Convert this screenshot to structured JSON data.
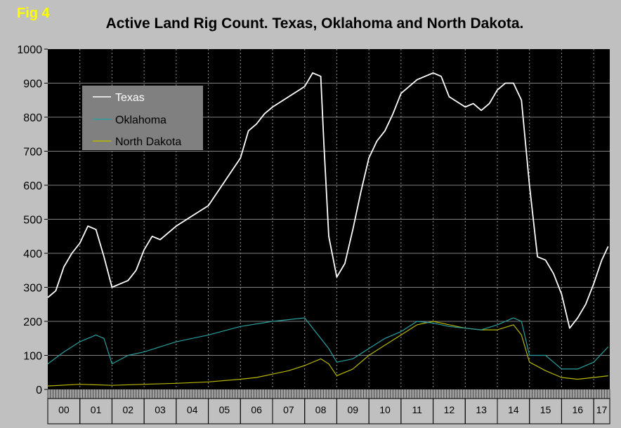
{
  "figure": {
    "label": "Fig 4",
    "title": "Active Land Rig Count. Texas, Oklahoma and North Dakota."
  },
  "colors": {
    "background": "#c0c0c0",
    "plot_area": "#000000",
    "gridline": "#808080",
    "texas": "#ffffff",
    "oklahoma": "#2aa0a0",
    "north_dakota": "#b8b800",
    "legend_box": "#808080"
  },
  "chart_data": {
    "type": "line",
    "title": "Active Land Rig Count. Texas, Oklahoma and North Dakota.",
    "xlabel": "",
    "ylabel": "",
    "ylim": [
      0,
      1000
    ],
    "yticks": [
      0,
      100,
      200,
      300,
      400,
      500,
      600,
      700,
      800,
      900,
      1000
    ],
    "xlim": [
      2000.0,
      2017.5
    ],
    "year_labels": [
      "00",
      "01",
      "02",
      "03",
      "04",
      "05",
      "06",
      "07",
      "08",
      "09",
      "10",
      "11",
      "12",
      "13",
      "14",
      "15",
      "16",
      "17"
    ],
    "grid": true,
    "legend_position": "top-left",
    "series": [
      {
        "name": "Texas",
        "color": "#ffffff",
        "x": [
          2000.0,
          2000.25,
          2000.5,
          2000.75,
          2001.0,
          2001.25,
          2001.5,
          2001.75,
          2002.0,
          2002.25,
          2002.5,
          2002.75,
          2003.0,
          2003.25,
          2003.5,
          2003.75,
          2004.0,
          2004.5,
          2005.0,
          2005.5,
          2006.0,
          2006.25,
          2006.5,
          2006.75,
          2007.0,
          2007.5,
          2008.0,
          2008.25,
          2008.5,
          2008.6,
          2008.75,
          2009.0,
          2009.25,
          2009.5,
          2009.75,
          2010.0,
          2010.25,
          2010.5,
          2010.75,
          2011.0,
          2011.5,
          2012.0,
          2012.25,
          2012.5,
          2013.0,
          2013.25,
          2013.5,
          2013.75,
          2014.0,
          2014.25,
          2014.5,
          2014.75,
          2015.0,
          2015.25,
          2015.5,
          2015.75,
          2016.0,
          2016.25,
          2016.5,
          2016.75,
          2017.0,
          2017.25,
          2017.45
        ],
        "values": [
          270,
          290,
          360,
          400,
          430,
          480,
          470,
          390,
          300,
          310,
          320,
          350,
          410,
          450,
          440,
          460,
          480,
          510,
          540,
          610,
          680,
          760,
          780,
          810,
          830,
          860,
          890,
          930,
          920,
          720,
          450,
          330,
          370,
          470,
          580,
          680,
          730,
          760,
          810,
          870,
          910,
          930,
          920,
          860,
          830,
          840,
          820,
          840,
          880,
          900,
          900,
          850,
          600,
          390,
          380,
          340,
          280,
          180,
          210,
          250,
          310,
          380,
          420
        ]
      },
      {
        "name": "Oklahoma",
        "color": "#2aa0a0",
        "x": [
          2000.0,
          2000.5,
          2001.0,
          2001.5,
          2001.75,
          2002.0,
          2002.5,
          2003.0,
          2004.0,
          2005.0,
          2006.0,
          2007.0,
          2008.0,
          2008.75,
          2009.0,
          2009.5,
          2010.0,
          2010.5,
          2011.0,
          2011.5,
          2012.0,
          2012.5,
          2013.0,
          2013.5,
          2014.0,
          2014.5,
          2014.75,
          2015.0,
          2015.5,
          2016.0,
          2016.5,
          2017.0,
          2017.45
        ],
        "values": [
          75,
          110,
          140,
          160,
          150,
          75,
          100,
          110,
          140,
          160,
          185,
          200,
          210,
          120,
          80,
          90,
          120,
          150,
          170,
          200,
          195,
          185,
          180,
          175,
          190,
          210,
          200,
          100,
          100,
          60,
          60,
          80,
          125
        ]
      },
      {
        "name": "North Dakota",
        "color": "#b8b800",
        "x": [
          2000.0,
          2001.0,
          2002.0,
          2003.0,
          2004.0,
          2005.0,
          2006.0,
          2006.5,
          2007.0,
          2007.5,
          2008.0,
          2008.5,
          2008.75,
          2009.0,
          2009.5,
          2010.0,
          2010.5,
          2011.0,
          2011.5,
          2012.0,
          2012.5,
          2013.0,
          2013.5,
          2014.0,
          2014.5,
          2014.75,
          2015.0,
          2015.5,
          2016.0,
          2016.5,
          2017.0,
          2017.45
        ],
        "values": [
          10,
          15,
          12,
          15,
          18,
          22,
          30,
          35,
          45,
          55,
          70,
          90,
          75,
          40,
          60,
          100,
          130,
          160,
          190,
          200,
          190,
          180,
          175,
          175,
          190,
          160,
          80,
          55,
          35,
          30,
          35,
          40
        ]
      }
    ]
  }
}
